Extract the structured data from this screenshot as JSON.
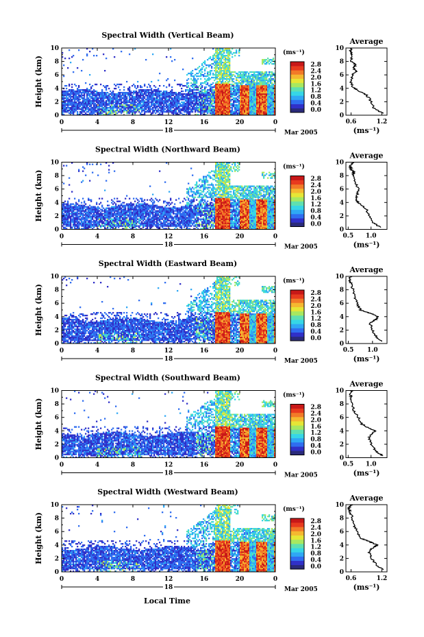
{
  "figure": {
    "xlabel": "Local Time",
    "date_label": "Mar 2005",
    "colorbar_unit": "(ms⁻¹)",
    "colorbar_ticks": [
      "2.8",
      "2.4",
      "2.0",
      "1.6",
      "1.2",
      "0.8",
      "0.4",
      "0.0"
    ],
    "colormap": [
      "#2a2a7a",
      "#3030c8",
      "#2f6df0",
      "#2fa8f4",
      "#36d6e6",
      "#5fe0b0",
      "#a8e860",
      "#e6e636",
      "#f5b830",
      "#f27a28",
      "#e83a1e",
      "#c81818"
    ],
    "average_title": "Average",
    "average_xlabel": "(ms⁻¹)"
  },
  "chart_data": [
    {
      "type": "heatmap",
      "title": "Spectral Width (Vertical Beam)",
      "ylabel": "Height (km)",
      "x_ticks": [
        "0",
        "4",
        "8",
        "12",
        "16",
        "20",
        "0"
      ],
      "day_label": "18",
      "y_ticks": [
        "0",
        "2",
        "4",
        "6",
        "8",
        "10"
      ],
      "xlim": [
        0,
        24
      ],
      "ylim": [
        0,
        10
      ],
      "clim": [
        0,
        3.0
      ],
      "average_profile": {
        "type": "line",
        "x_ticks": [
          "0.6",
          "1.2"
        ],
        "xlim": [
          0.5,
          1.3
        ],
        "y_ticks": [
          "0",
          "2",
          "4",
          "6",
          "8",
          "10"
        ],
        "ylim": [
          0,
          10
        ],
        "height": [
          0.3,
          1.0,
          2.0,
          3.0,
          3.8,
          4.2,
          5.0,
          6.0,
          6.5,
          7.0,
          7.5,
          8.0,
          9.0,
          9.5,
          10.0
        ],
        "width": [
          1.22,
          1.05,
          1.0,
          0.9,
          0.72,
          0.62,
          0.6,
          0.63,
          0.7,
          0.65,
          0.68,
          0.6,
          0.62,
          0.58,
          0.6
        ]
      }
    },
    {
      "type": "heatmap",
      "title": "Spectral Width (Northward Beam)",
      "ylabel": "Height (km)",
      "x_ticks": [
        "0",
        "4",
        "8",
        "12",
        "16",
        "20",
        "0"
      ],
      "day_label": "18",
      "y_ticks": [
        "0",
        "2",
        "4",
        "6",
        "8",
        "10"
      ],
      "xlim": [
        0,
        24
      ],
      "ylim": [
        0,
        10
      ],
      "clim": [
        0,
        3.0
      ],
      "average_profile": {
        "type": "line",
        "x_ticks": [
          "0.5",
          "1.0"
        ],
        "xlim": [
          0.45,
          1.35
        ],
        "y_ticks": [
          "0",
          "2",
          "4",
          "6",
          "8",
          "10"
        ],
        "ylim": [
          0,
          10
        ],
        "height": [
          0.3,
          1.0,
          2.0,
          3.0,
          3.8,
          4.3,
          5.0,
          6.0,
          7.0,
          8.0,
          8.5,
          9.0,
          9.5,
          10.0
        ],
        "width": [
          1.2,
          1.05,
          0.95,
          0.9,
          0.75,
          0.68,
          0.7,
          0.72,
          0.66,
          0.6,
          0.62,
          0.56,
          0.55,
          0.6
        ]
      }
    },
    {
      "type": "heatmap",
      "title": "Spectral Width (Eastward Beam)",
      "ylabel": "Height (km)",
      "x_ticks": [
        "0",
        "4",
        "8",
        "12",
        "16",
        "20",
        "0"
      ],
      "day_label": "18",
      "y_ticks": [
        "0",
        "2",
        "4",
        "6",
        "8",
        "10"
      ],
      "xlim": [
        0,
        24
      ],
      "ylim": [
        0,
        10
      ],
      "clim": [
        0,
        3.0
      ],
      "average_profile": {
        "type": "line",
        "x_ticks": [
          "0.5",
          "1.0"
        ],
        "xlim": [
          0.45,
          1.3
        ],
        "y_ticks": [
          "0",
          "2",
          "4",
          "6",
          "8",
          "10"
        ],
        "ylim": [
          0,
          10
        ],
        "height": [
          0.3,
          1.0,
          2.0,
          3.0,
          3.5,
          4.0,
          4.5,
          5.0,
          6.0,
          7.0,
          8.0,
          9.0,
          9.5,
          10.0
        ],
        "width": [
          1.2,
          1.08,
          1.0,
          0.95,
          1.05,
          1.12,
          0.95,
          0.75,
          0.68,
          0.62,
          0.6,
          0.55,
          0.52,
          0.55
        ]
      }
    },
    {
      "type": "heatmap",
      "title": "Spectral Width (Southward Beam)",
      "ylabel": "Height (km)",
      "x_ticks": [
        "0",
        "4",
        "8",
        "12",
        "16",
        "20",
        "0"
      ],
      "day_label": "18",
      "y_ticks": [
        "0",
        "2",
        "4",
        "6",
        "8",
        "10"
      ],
      "xlim": [
        0,
        24
      ],
      "ylim": [
        0,
        10
      ],
      "clim": [
        0,
        3.0
      ],
      "average_profile": {
        "type": "line",
        "x_ticks": [
          "0.5",
          "1.0"
        ],
        "xlim": [
          0.45,
          1.35
        ],
        "y_ticks": [
          "0",
          "2",
          "4",
          "6",
          "8",
          "10"
        ],
        "ylim": [
          0,
          10
        ],
        "height": [
          0.3,
          1.0,
          2.0,
          3.0,
          3.5,
          4.0,
          4.5,
          5.0,
          6.0,
          7.0,
          8.0,
          9.0,
          9.5,
          10.0
        ],
        "width": [
          1.25,
          1.1,
          1.0,
          0.95,
          1.0,
          1.1,
          0.92,
          0.8,
          0.72,
          0.62,
          0.6,
          0.56,
          0.55,
          0.58
        ]
      }
    },
    {
      "type": "heatmap",
      "title": "Spectral Width (Westward Beam)",
      "ylabel": "Height (km)",
      "x_ticks": [
        "0",
        "4",
        "8",
        "12",
        "16",
        "20",
        "0"
      ],
      "day_label": "18",
      "y_ticks": [
        "0",
        "2",
        "4",
        "6",
        "8",
        "10"
      ],
      "xlim": [
        0,
        24
      ],
      "ylim": [
        0,
        10
      ],
      "clim": [
        0,
        3.0
      ],
      "average_profile": {
        "type": "line",
        "x_ticks": [
          "0.6",
          "1.2"
        ],
        "xlim": [
          0.5,
          1.3
        ],
        "y_ticks": [
          "0",
          "2",
          "4",
          "6",
          "8",
          "10"
        ],
        "ylim": [
          0,
          10
        ],
        "height": [
          0.3,
          1.0,
          2.0,
          3.0,
          3.5,
          4.0,
          4.5,
          5.0,
          6.0,
          7.0,
          8.0,
          9.0,
          9.5,
          10.0
        ],
        "width": [
          1.22,
          1.1,
          1.0,
          0.95,
          1.0,
          1.12,
          0.95,
          0.8,
          0.72,
          0.65,
          0.62,
          0.58,
          0.55,
          0.6
        ]
      }
    }
  ]
}
